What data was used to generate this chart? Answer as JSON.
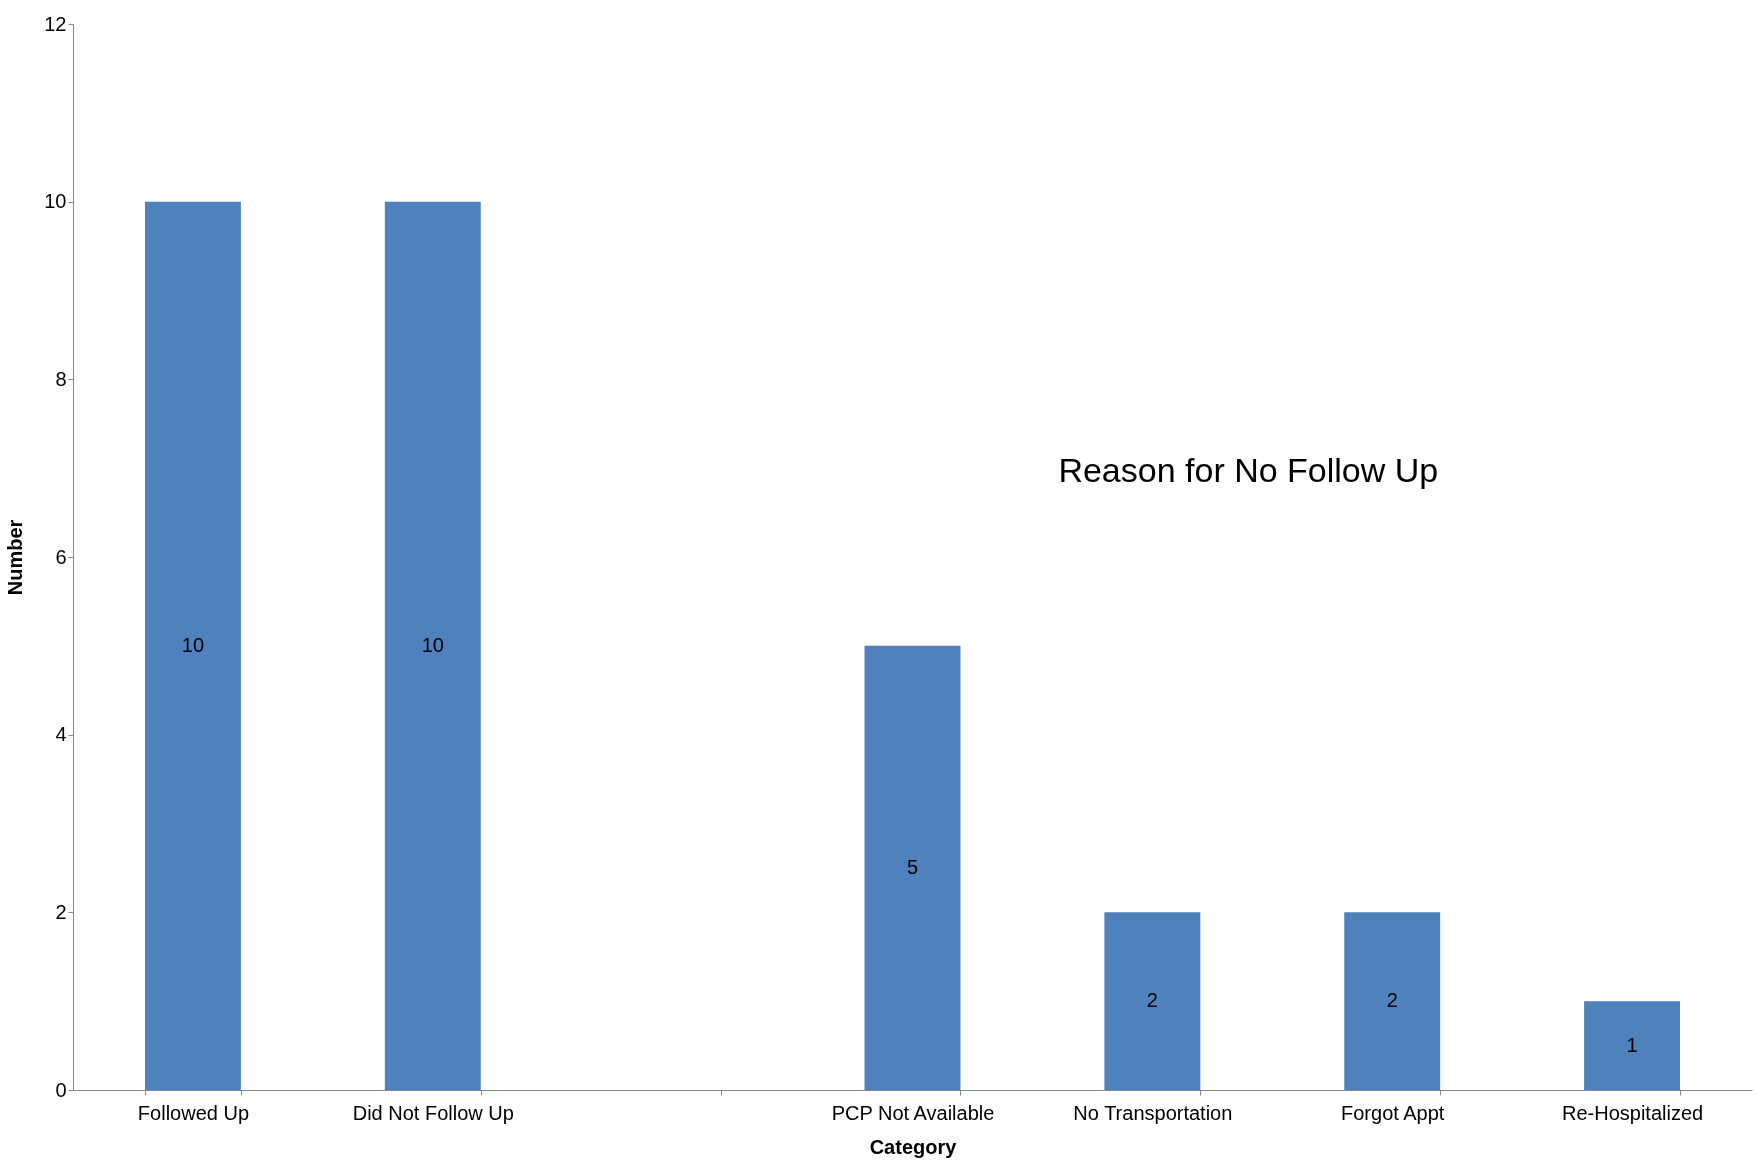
{
  "chart_data": {
    "type": "bar",
    "title": "Reason for No Follow Up",
    "xlabel": "Category",
    "ylabel": "Number",
    "categories": [
      "Followed Up",
      "Did Not Follow Up",
      null,
      "PCP Not Available",
      "No Transportation",
      "Forgot Appt",
      "Re-Hospitalized"
    ],
    "values": [
      10,
      10,
      null,
      5,
      2,
      2,
      1
    ],
    "color": "#4f81bd",
    "data_labels": true,
    "ylim": [
      0,
      12
    ],
    "yticks": [
      0,
      2,
      4,
      6,
      8,
      10,
      12
    ],
    "grid": false
  }
}
